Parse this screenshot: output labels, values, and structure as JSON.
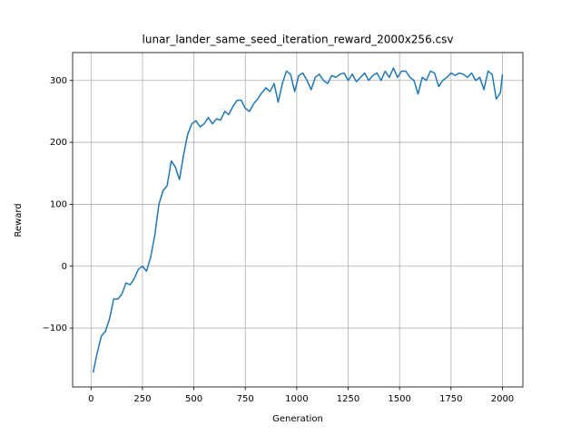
{
  "chart_data": {
    "type": "line",
    "title": "lunar_lander_same_seed_iteration_reward_2000x256.csv",
    "x_label": "Generation",
    "y_label": "Reward",
    "x": [
      10,
      30,
      50,
      70,
      90,
      110,
      130,
      150,
      170,
      190,
      210,
      230,
      250,
      270,
      290,
      310,
      330,
      350,
      370,
      390,
      410,
      430,
      450,
      470,
      490,
      510,
      530,
      550,
      570,
      590,
      610,
      630,
      650,
      670,
      690,
      710,
      730,
      750,
      770,
      790,
      810,
      830,
      850,
      870,
      890,
      910,
      930,
      950,
      970,
      990,
      1010,
      1030,
      1050,
      1070,
      1090,
      1110,
      1130,
      1150,
      1170,
      1190,
      1210,
      1230,
      1250,
      1270,
      1290,
      1310,
      1330,
      1350,
      1370,
      1390,
      1410,
      1430,
      1450,
      1470,
      1490,
      1510,
      1530,
      1550,
      1570,
      1590,
      1610,
      1630,
      1650,
      1670,
      1690,
      1710,
      1730,
      1750,
      1770,
      1790,
      1810,
      1830,
      1850,
      1870,
      1890,
      1910,
      1930,
      1950,
      1970,
      1990,
      2000
    ],
    "series": [
      {
        "name": "Reward",
        "color": "#1f77b4",
        "values": [
          -172,
          -140,
          -113,
          -105,
          -85,
          -53,
          -53,
          -45,
          -27,
          -30,
          -20,
          -5,
          0,
          -8,
          15,
          50,
          100,
          122,
          130,
          170,
          160,
          140,
          180,
          213,
          230,
          235,
          225,
          230,
          240,
          230,
          238,
          236,
          250,
          245,
          258,
          268,
          268,
          255,
          250,
          262,
          270,
          280,
          288,
          282,
          295,
          265,
          295,
          315,
          310,
          282,
          308,
          312,
          300,
          285,
          305,
          310,
          300,
          295,
          308,
          305,
          310,
          312,
          300,
          310,
          298,
          305,
          312,
          300,
          308,
          312,
          300,
          315,
          305,
          320,
          305,
          315,
          315,
          305,
          300,
          278,
          305,
          300,
          315,
          312,
          290,
          300,
          305,
          312,
          308,
          312,
          310,
          305,
          312,
          300,
          305,
          285,
          315,
          310,
          270,
          280,
          310
        ]
      }
    ],
    "xlim": [
      -89.5,
      2099.5
    ],
    "ylim": [
      -195,
      345
    ],
    "xticks": [
      0,
      250,
      500,
      750,
      1000,
      1250,
      1500,
      1750,
      2000
    ],
    "yticks": [
      {
        "value": -100,
        "label": "−100"
      },
      0,
      100,
      200,
      300
    ],
    "grid": true
  }
}
